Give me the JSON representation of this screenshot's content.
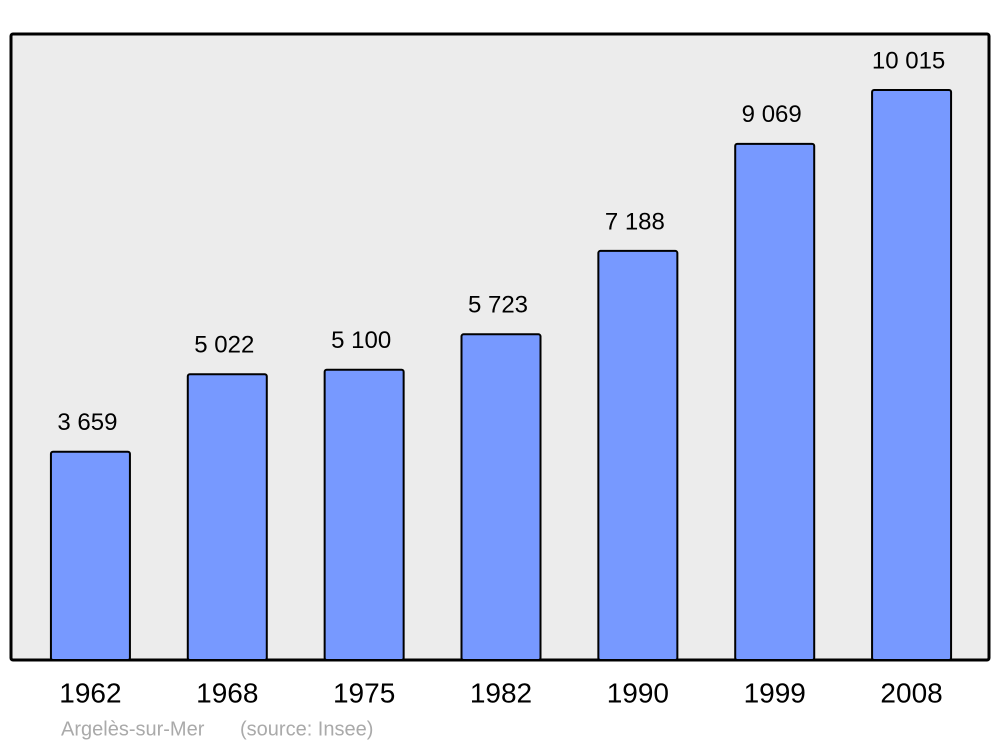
{
  "chart_data": {
    "type": "bar",
    "categories": [
      "1962",
      "1968",
      "1975",
      "1982",
      "1990",
      "1999",
      "2008"
    ],
    "values": [
      3659,
      5022,
      5100,
      5723,
      7188,
      9069,
      10015
    ],
    "value_labels": [
      "3 659",
      "5 022",
      "5 100",
      "5 723",
      "7 188",
      "9 069",
      "10 015"
    ],
    "color": "#7799ff",
    "ylim": [
      0,
      11000
    ],
    "caption": "Argelès-sur-Mer",
    "source": "(source: Insee)"
  }
}
